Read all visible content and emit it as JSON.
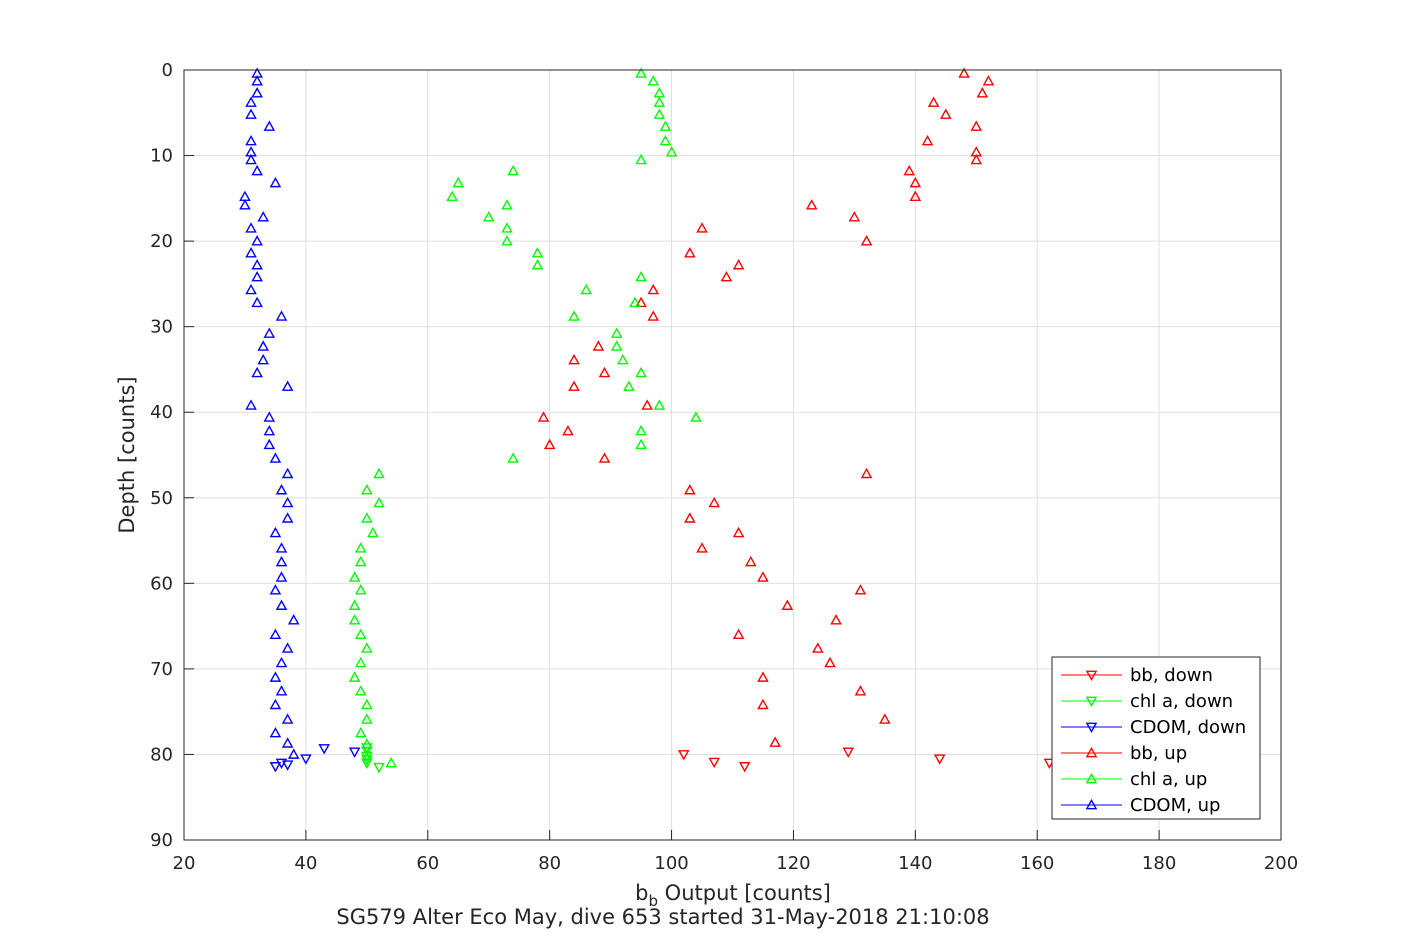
{
  "chart_data": {
    "type": "scatter",
    "title": "",
    "caption": "SG579 Alter Eco May, dive 653 started 31-May-2018 21:10:08",
    "xlabel_main": "b",
    "xlabel_sub": "b",
    "xlabel_rest": " Output [counts]",
    "ylabel": "Depth [counts]",
    "xlim": [
      20,
      200
    ],
    "ylim": [
      0,
      90
    ],
    "y_reversed": true,
    "grid": true,
    "xticks": [
      20,
      40,
      60,
      80,
      100,
      120,
      140,
      160,
      180,
      200
    ],
    "yticks": [
      0,
      10,
      20,
      30,
      40,
      50,
      60,
      70,
      80,
      90
    ],
    "legend_position": "bottom-right",
    "series": [
      {
        "name": "bb, down",
        "color": "#ff0000",
        "marker": "triangle-down",
        "points": [
          [
            102,
            80.0
          ],
          [
            107,
            80.9
          ],
          [
            112,
            81.4
          ],
          [
            129,
            79.7
          ],
          [
            144,
            80.5
          ],
          [
            162,
            81.0
          ]
        ]
      },
      {
        "name": "chl a, down",
        "color": "#00ff00",
        "marker": "triangle-down",
        "points": [
          [
            50,
            79.2
          ],
          [
            50,
            79.6
          ],
          [
            50,
            80.2
          ],
          [
            50,
            80.6
          ],
          [
            50,
            81.0
          ],
          [
            52,
            81.5
          ]
        ]
      },
      {
        "name": "CDOM, down",
        "color": "#0000ff",
        "marker": "triangle-down",
        "points": [
          [
            35,
            81.4
          ],
          [
            36,
            81.0
          ],
          [
            37,
            81.2
          ],
          [
            40,
            80.5
          ],
          [
            43,
            79.3
          ],
          [
            48,
            79.7
          ]
        ]
      },
      {
        "name": "bb, up",
        "color": "#ff0000",
        "marker": "triangle-up",
        "points": [
          [
            148,
            0.4
          ],
          [
            152,
            1.3
          ],
          [
            151,
            2.7
          ],
          [
            143,
            3.8
          ],
          [
            145,
            5.2
          ],
          [
            150,
            6.6
          ],
          [
            142,
            8.3
          ],
          [
            150,
            9.6
          ],
          [
            150,
            10.5
          ],
          [
            139,
            11.8
          ],
          [
            140,
            13.2
          ],
          [
            140,
            14.8
          ],
          [
            123,
            15.8
          ],
          [
            130,
            17.2
          ],
          [
            105,
            18.5
          ],
          [
            132,
            20.0
          ],
          [
            103,
            21.4
          ],
          [
            111,
            22.8
          ],
          [
            109,
            24.2
          ],
          [
            97,
            25.7
          ],
          [
            95,
            27.2
          ],
          [
            97,
            28.8
          ],
          [
            88,
            32.3
          ],
          [
            84,
            33.9
          ],
          [
            89,
            35.4
          ],
          [
            84,
            37.0
          ],
          [
            96,
            39.2
          ],
          [
            79,
            40.6
          ],
          [
            83,
            42.2
          ],
          [
            80,
            43.8
          ],
          [
            89,
            45.4
          ],
          [
            132,
            47.2
          ],
          [
            103,
            49.1
          ],
          [
            107,
            50.6
          ],
          [
            103,
            52.4
          ],
          [
            111,
            54.1
          ],
          [
            105,
            55.9
          ],
          [
            113,
            57.5
          ],
          [
            115,
            59.3
          ],
          [
            131,
            60.8
          ],
          [
            119,
            62.6
          ],
          [
            127,
            64.3
          ],
          [
            111,
            66.0
          ],
          [
            124,
            67.6
          ],
          [
            126,
            69.3
          ],
          [
            115,
            71.0
          ],
          [
            131,
            72.6
          ],
          [
            115,
            74.2
          ],
          [
            135,
            75.9
          ],
          [
            117,
            78.6
          ]
        ]
      },
      {
        "name": "chl a, up",
        "color": "#00ff00",
        "marker": "triangle-up",
        "points": [
          [
            95,
            0.4
          ],
          [
            97,
            1.3
          ],
          [
            98,
            2.7
          ],
          [
            98,
            3.8
          ],
          [
            98,
            5.2
          ],
          [
            99,
            6.6
          ],
          [
            99,
            8.3
          ],
          [
            100,
            9.6
          ],
          [
            95,
            10.5
          ],
          [
            74,
            11.8
          ],
          [
            65,
            13.2
          ],
          [
            64,
            14.8
          ],
          [
            73,
            15.8
          ],
          [
            70,
            17.2
          ],
          [
            73,
            18.5
          ],
          [
            73,
            20.0
          ],
          [
            78,
            21.4
          ],
          [
            78,
            22.8
          ],
          [
            95,
            24.2
          ],
          [
            86,
            25.7
          ],
          [
            94,
            27.2
          ],
          [
            84,
            28.8
          ],
          [
            91,
            30.8
          ],
          [
            91,
            32.3
          ],
          [
            92,
            33.9
          ],
          [
            95,
            35.4
          ],
          [
            93,
            37.0
          ],
          [
            98,
            39.2
          ],
          [
            104,
            40.6
          ],
          [
            95,
            42.2
          ],
          [
            95,
            43.8
          ],
          [
            74,
            45.4
          ],
          [
            52,
            47.2
          ],
          [
            50,
            49.1
          ],
          [
            52,
            50.6
          ],
          [
            50,
            52.4
          ],
          [
            51,
            54.1
          ],
          [
            49,
            55.9
          ],
          [
            49,
            57.5
          ],
          [
            48,
            59.3
          ],
          [
            49,
            60.8
          ],
          [
            48,
            62.6
          ],
          [
            48,
            64.3
          ],
          [
            49,
            66.0
          ],
          [
            50,
            67.6
          ],
          [
            49,
            69.3
          ],
          [
            48,
            71.0
          ],
          [
            49,
            72.6
          ],
          [
            50,
            74.2
          ],
          [
            50,
            75.9
          ],
          [
            49,
            77.5
          ],
          [
            50,
            78.8
          ],
          [
            54,
            81.0
          ]
        ]
      },
      {
        "name": "CDOM, up",
        "color": "#0000ff",
        "marker": "triangle-up",
        "points": [
          [
            32,
            0.4
          ],
          [
            32,
            1.3
          ],
          [
            32,
            2.7
          ],
          [
            31,
            3.8
          ],
          [
            31,
            5.2
          ],
          [
            34,
            6.6
          ],
          [
            31,
            8.3
          ],
          [
            31,
            9.6
          ],
          [
            31,
            10.5
          ],
          [
            32,
            11.8
          ],
          [
            35,
            13.2
          ],
          [
            30,
            14.8
          ],
          [
            30,
            15.8
          ],
          [
            33,
            17.2
          ],
          [
            31,
            18.5
          ],
          [
            32,
            20.0
          ],
          [
            31,
            21.4
          ],
          [
            32,
            22.8
          ],
          [
            32,
            24.2
          ],
          [
            31,
            25.7
          ],
          [
            32,
            27.2
          ],
          [
            36,
            28.8
          ],
          [
            34,
            30.8
          ],
          [
            33,
            32.3
          ],
          [
            33,
            33.9
          ],
          [
            32,
            35.4
          ],
          [
            37,
            37.0
          ],
          [
            31,
            39.2
          ],
          [
            34,
            40.6
          ],
          [
            34,
            42.2
          ],
          [
            34,
            43.8
          ],
          [
            35,
            45.4
          ],
          [
            37,
            47.2
          ],
          [
            36,
            49.1
          ],
          [
            37,
            50.6
          ],
          [
            37,
            52.4
          ],
          [
            35,
            54.1
          ],
          [
            36,
            55.9
          ],
          [
            36,
            57.5
          ],
          [
            36,
            59.3
          ],
          [
            35,
            60.8
          ],
          [
            36,
            62.6
          ],
          [
            38,
            64.3
          ],
          [
            35,
            66.0
          ],
          [
            37,
            67.6
          ],
          [
            36,
            69.3
          ],
          [
            35,
            71.0
          ],
          [
            36,
            72.6
          ],
          [
            35,
            74.2
          ],
          [
            37,
            75.9
          ],
          [
            35,
            77.5
          ],
          [
            37,
            78.7
          ],
          [
            38,
            80.0
          ]
        ]
      }
    ]
  }
}
